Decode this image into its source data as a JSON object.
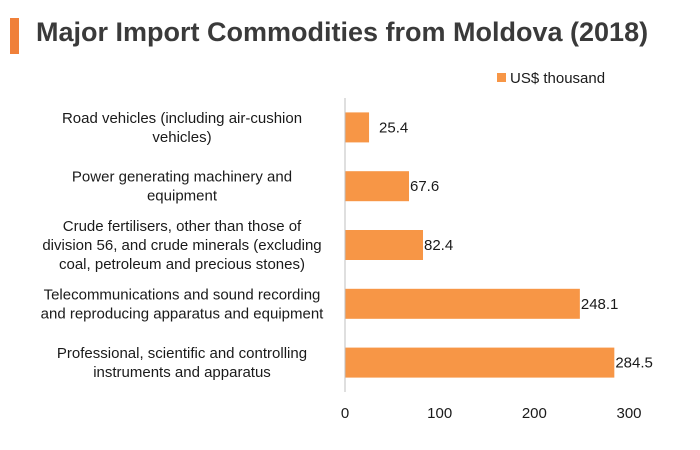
{
  "title": "Major Import Commodities from Moldova (2018)",
  "accent_color": "#F0803A",
  "bar_color": "#F79646",
  "chart_data": {
    "type": "bar",
    "orientation": "horizontal",
    "title": "Major Import Commodities from Moldova (2018)",
    "categories": [
      [
        "Road vehicles (including air-cushion",
        "vehicles)"
      ],
      [
        "Power generating machinery and",
        "equipment"
      ],
      [
        "Crude fertilisers, other than those of",
        "division 56, and crude minerals (excluding",
        "coal, petroleum and precious stones)"
      ],
      [
        "Telecommunications and sound recording",
        "and reproducing apparatus and equipment"
      ],
      [
        "Professional, scientific and controlling",
        "instruments and apparatus"
      ]
    ],
    "series": [
      {
        "name": "US$ thousand",
        "values": [
          25.4,
          67.6,
          82.4,
          248.1,
          284.5
        ],
        "value_labels": [
          "25.4",
          "67.6",
          "82.4",
          "248.1",
          "284.5"
        ]
      }
    ],
    "xlim": [
      0,
      300
    ],
    "xticks": [
      "0",
      "100",
      "200",
      "300"
    ],
    "xtick_values": [
      0,
      100,
      200,
      300
    ],
    "legend_position": "top-right",
    "grid": false
  }
}
